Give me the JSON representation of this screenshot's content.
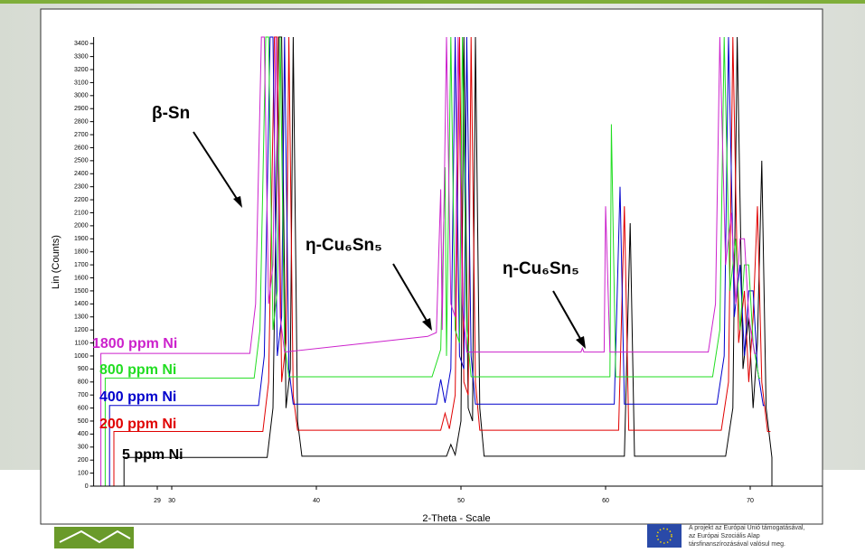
{
  "chart_data": {
    "type": "line",
    "y_label": "Lin (Counts)",
    "x_label": "2-Theta - Scale",
    "xlim": [
      24.6,
      75
    ],
    "xticks": [
      29,
      30,
      40,
      50,
      60,
      70
    ],
    "ylim": [
      0,
      3450
    ],
    "yticks": [
      0,
      100,
      200,
      300,
      400,
      500,
      600,
      700,
      800,
      900,
      1000,
      1100,
      1200,
      1300,
      1400,
      1500,
      1600,
      1700,
      1800,
      1900,
      2000,
      2100,
      2200,
      2300,
      2400,
      2500,
      2600,
      2700,
      2800,
      2900,
      3000,
      3100,
      3200,
      3300,
      3400
    ],
    "annotations": [
      "β-Sn",
      "η-Cu₆Sn₅",
      "η-Cu₆Sn₅"
    ],
    "series": [
      {
        "name": "5 ppm Ni",
        "color": "#000000",
        "x": [
          26.7,
          26.7,
          36.6,
          37.0,
          37.4,
          37.6,
          37.9,
          38.2,
          38.4,
          38.7,
          39.0,
          49.0,
          49.3,
          49.6,
          50.0,
          50.2,
          50.5,
          50.8,
          51.0,
          51.3,
          51.6,
          61.3,
          61.7,
          62.0,
          68.3,
          68.8,
          69.1,
          69.5,
          69.9,
          70.2,
          70.5,
          70.8,
          71.1,
          71.5,
          71.5
        ],
        "values": [
          0,
          220,
          220,
          600,
          3450,
          3450,
          600,
          900,
          3450,
          500,
          230,
          230,
          320,
          240,
          500,
          3450,
          600,
          500,
          3450,
          600,
          230,
          230,
          2020,
          230,
          230,
          600,
          3450,
          900,
          1300,
          600,
          1100,
          2500,
          600,
          220,
          0
        ]
      },
      {
        "name": "200 ppm Ni",
        "color": "#e00000",
        "x": [
          26.0,
          26.0,
          36.3,
          36.7,
          37.1,
          37.3,
          37.6,
          37.9,
          38.1,
          38.4,
          38.7,
          48.6,
          48.9,
          49.2,
          49.6,
          49.9,
          50.2,
          50.5,
          50.7,
          51.0,
          51.3,
          60.9,
          61.3,
          61.6,
          68.0,
          68.5,
          68.8,
          69.2,
          69.6,
          69.9,
          70.2,
          70.5,
          70.8,
          71.2,
          71.4
        ],
        "values": [
          0,
          420,
          420,
          800,
          3450,
          3450,
          800,
          1100,
          3450,
          700,
          430,
          430,
          560,
          440,
          700,
          3450,
          800,
          700,
          3450,
          800,
          430,
          430,
          2150,
          430,
          430,
          800,
          3450,
          1100,
          1500,
          800,
          1300,
          2150,
          800,
          420,
          420
        ]
      },
      {
        "name": "400 ppm Ni",
        "color": "#0000cc",
        "x": [
          25.7,
          25.7,
          36.0,
          36.4,
          36.8,
          37.0,
          37.3,
          37.6,
          37.8,
          38.1,
          38.4,
          48.3,
          48.6,
          48.9,
          49.3,
          49.6,
          49.9,
          50.2,
          50.4,
          50.7,
          51.0,
          60.6,
          61.0,
          61.3,
          67.7,
          68.2,
          68.5,
          68.9,
          69.3,
          69.6,
          69.9,
          70.2,
          70.5,
          70.9,
          71.0
        ],
        "values": [
          0,
          620,
          620,
          1000,
          3450,
          3450,
          1000,
          1300,
          3450,
          900,
          630,
          630,
          820,
          640,
          900,
          3450,
          1000,
          900,
          3450,
          1000,
          630,
          630,
          2300,
          630,
          630,
          1000,
          3450,
          1300,
          1700,
          1000,
          1500,
          1500,
          900,
          620,
          620
        ]
      },
      {
        "name": "800 ppm Ni",
        "color": "#22dd22",
        "x": [
          25.4,
          25.4,
          35.7,
          36.1,
          36.5,
          36.7,
          37.0,
          37.3,
          37.5,
          37.8,
          38.1,
          48.0,
          48.6,
          48.9,
          49.0,
          49.3,
          49.6,
          49.9,
          50.1,
          50.4,
          50.7,
          60.3,
          60.4,
          60.7,
          67.4,
          67.9,
          68.2,
          68.6,
          69.0,
          69.3,
          69.6,
          69.9,
          70.2,
          70.6,
          70.7
        ],
        "values": [
          0,
          830,
          830,
          1200,
          3450,
          3450,
          1200,
          1500,
          3450,
          1100,
          840,
          840,
          1050,
          2450,
          1000,
          3450,
          1200,
          1100,
          3450,
          1200,
          840,
          840,
          2780,
          840,
          840,
          1200,
          3450,
          1500,
          1900,
          1200,
          1700,
          1700,
          1100,
          830,
          830
        ]
      },
      {
        "name": "1800 ppm Ni",
        "color": "#cc22cc",
        "x": [
          25.1,
          25.1,
          35.4,
          35.8,
          36.2,
          36.4,
          36.7,
          37.0,
          37.2,
          37.5,
          37.8,
          47.7,
          48.3,
          48.6,
          48.7,
          49.0,
          49.3,
          49.6,
          49.8,
          50.1,
          50.4,
          58.3,
          58.4,
          58.5,
          59.9,
          60.0,
          60.3,
          67.1,
          67.6,
          67.9,
          68.3,
          68.7,
          69.0,
          69.3,
          69.6,
          69.9,
          70.3,
          70.4
        ],
        "values": [
          0,
          1020,
          1020,
          1400,
          3450,
          3450,
          1400,
          1700,
          3450,
          1300,
          1030,
          1150,
          1180,
          2280,
          1200,
          3450,
          1400,
          1300,
          3450,
          1400,
          1030,
          1030,
          1060,
          1030,
          1030,
          2150,
          1030,
          1030,
          1400,
          3450,
          1700,
          2100,
          1400,
          1900,
          1900,
          1300,
          1020,
          1020
        ]
      }
    ]
  },
  "footer": {
    "eu_note": [
      "A projekt az Európai Unió támogatásával,",
      "az Európai Szociális Alap",
      "társfinanszírozásával valósul meg."
    ]
  }
}
